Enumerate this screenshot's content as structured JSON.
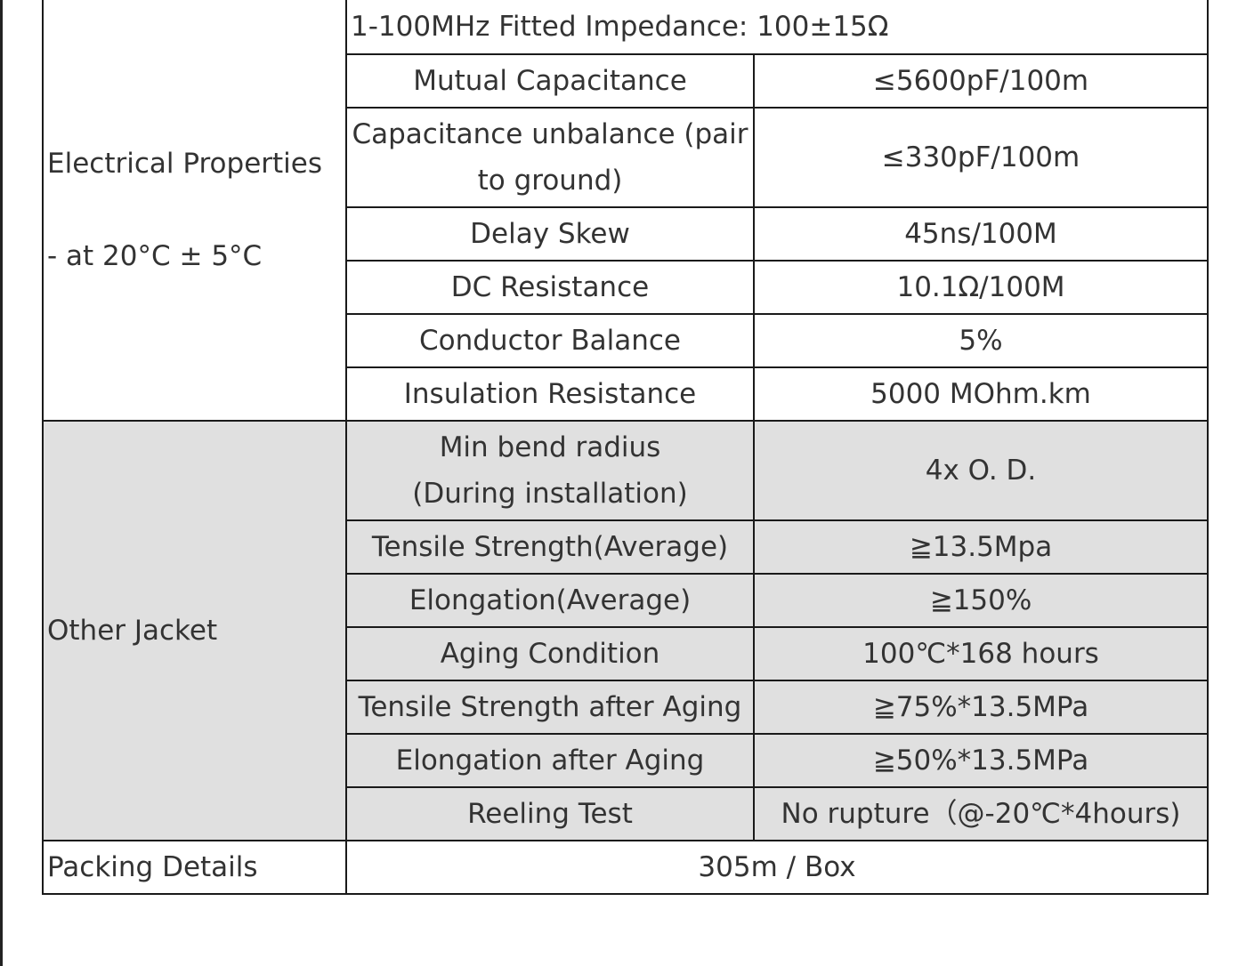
{
  "electrical": {
    "label_line1": "Electrical   Properties",
    "label_line2": "- at 20°C ± 5°C",
    "impedance": "1-100MHz Fitted Impedance: 100±15Ω",
    "rows": [
      {
        "param": "Mutual Capacitance",
        "value": "≤5600pF/100m"
      },
      {
        "param": "Capacitance unbalance (pair to ground)",
        "value": "≤330pF/100m"
      },
      {
        "param": "Delay Skew",
        "value": "45ns/100M"
      },
      {
        "param": "DC Resistance",
        "value": "10.1Ω/100M"
      },
      {
        "param": "Conductor Balance",
        "value": "5%"
      },
      {
        "param": "Insulation Resistance",
        "value": "5000 MOhm.km"
      }
    ]
  },
  "jacket": {
    "label": "Other Jacket",
    "rows": [
      {
        "param_line1": "Min bend radius",
        "param_line2": "(During installation)",
        "value": "4x O. D."
      },
      {
        "param": "Tensile Strength(Average)",
        "value": "≧13.5Mpa"
      },
      {
        "param": "Elongation(Average)",
        "value": "≧150%"
      },
      {
        "param": "Aging Condition",
        "value": "100℃*168 hours"
      },
      {
        "param": "Tensile Strength after Aging",
        "value": "≧75%*13.5MPa"
      },
      {
        "param": "Elongation after Aging",
        "value": "≧50%*13.5MPa"
      },
      {
        "param": "Reeling Test",
        "value": "No rupture（@-20℃*4hours)"
      }
    ]
  },
  "packing": {
    "label": "Packing Details",
    "value": "305m / Box"
  }
}
